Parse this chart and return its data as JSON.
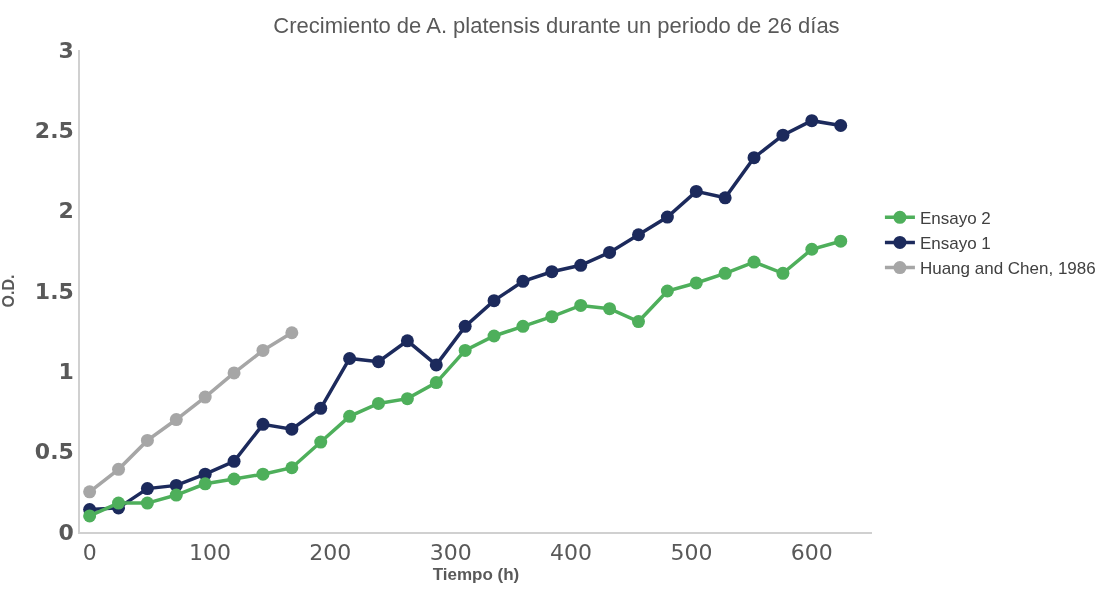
{
  "chart_data": {
    "type": "line",
    "title": "Crecimiento de A. platensis durante un periodo de 26 días",
    "xlabel": "Tiempo (h)",
    "ylabel": "O.D.",
    "xlim": [
      -8,
      650
    ],
    "xticks": [
      0,
      100,
      200,
      300,
      400,
      500,
      600
    ],
    "ylim": [
      0,
      3
    ],
    "yticks": [
      0,
      0.5,
      1,
      1.5,
      2,
      2.5,
      3
    ],
    "grid": false,
    "legend": "right",
    "marker": "circle",
    "line_style": "solid",
    "x": [
      0,
      24,
      48,
      72,
      96,
      120,
      144,
      168,
      192,
      216,
      240,
      264,
      288,
      312,
      336,
      360,
      384,
      408,
      432,
      456,
      480,
      504,
      528,
      552,
      576,
      600,
      624
    ],
    "series": [
      {
        "name": "Ensayo 2",
        "color": "#4eaf5b",
        "values": [
          0.1,
          0.18,
          0.18,
          0.23,
          0.3,
          0.33,
          0.36,
          0.4,
          0.56,
          0.72,
          0.8,
          0.83,
          0.93,
          1.13,
          1.22,
          1.28,
          1.34,
          1.41,
          1.39,
          1.31,
          1.5,
          1.55,
          1.61,
          1.68,
          1.61,
          1.76,
          1.81
        ]
      },
      {
        "name": "Ensayo 1",
        "color": "#1c2a5c",
        "values": [
          0.14,
          0.15,
          0.27,
          0.29,
          0.36,
          0.44,
          0.67,
          0.64,
          0.77,
          1.08,
          1.06,
          1.19,
          1.04,
          1.28,
          1.44,
          1.56,
          1.62,
          1.66,
          1.74,
          1.85,
          1.96,
          2.12,
          2.08,
          2.33,
          2.47,
          2.56,
          2.53
        ]
      },
      {
        "name": "Huang and Chen, 1986",
        "color": "#a6a6a6",
        "x": [
          0,
          24,
          48,
          72,
          96,
          120,
          144,
          168
        ],
        "values": [
          0.25,
          0.39,
          0.57,
          0.7,
          0.84,
          0.99,
          1.13,
          1.24
        ]
      }
    ]
  }
}
